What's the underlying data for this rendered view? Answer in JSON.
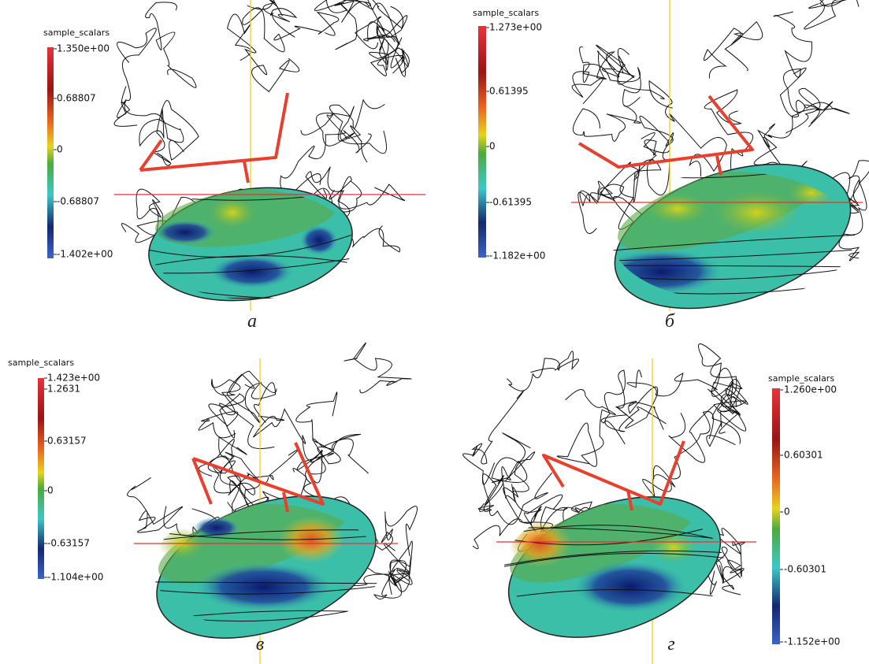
{
  "panels": [
    {
      "colorbar": {
        "title": "sample_scalars",
        "labels": [
          "1.350e+00",
          "0.68807",
          "0",
          "-0.68807",
          "-1.402e+00"
        ]
      },
      "caption": "а"
    },
    {
      "colorbar": {
        "title": "sample_scalars",
        "labels": [
          "1.273e+00",
          "0.61395",
          "0",
          "-0.61395",
          "-1.182e+00"
        ]
      },
      "caption": "б"
    },
    {
      "colorbar": {
        "title": "sample_scalars",
        "labels": [
          "1.423e+00",
          "1.2631",
          "0.63157",
          "0",
          "-0.63157",
          "-1.104e+00"
        ]
      },
      "caption": "в"
    },
    {
      "colorbar": {
        "title": "sample_scalars",
        "labels": [
          "1.260e+00",
          "0.60301",
          "0",
          "-0.60301",
          "-1.152e+00"
        ]
      },
      "caption": "г"
    }
  ]
}
